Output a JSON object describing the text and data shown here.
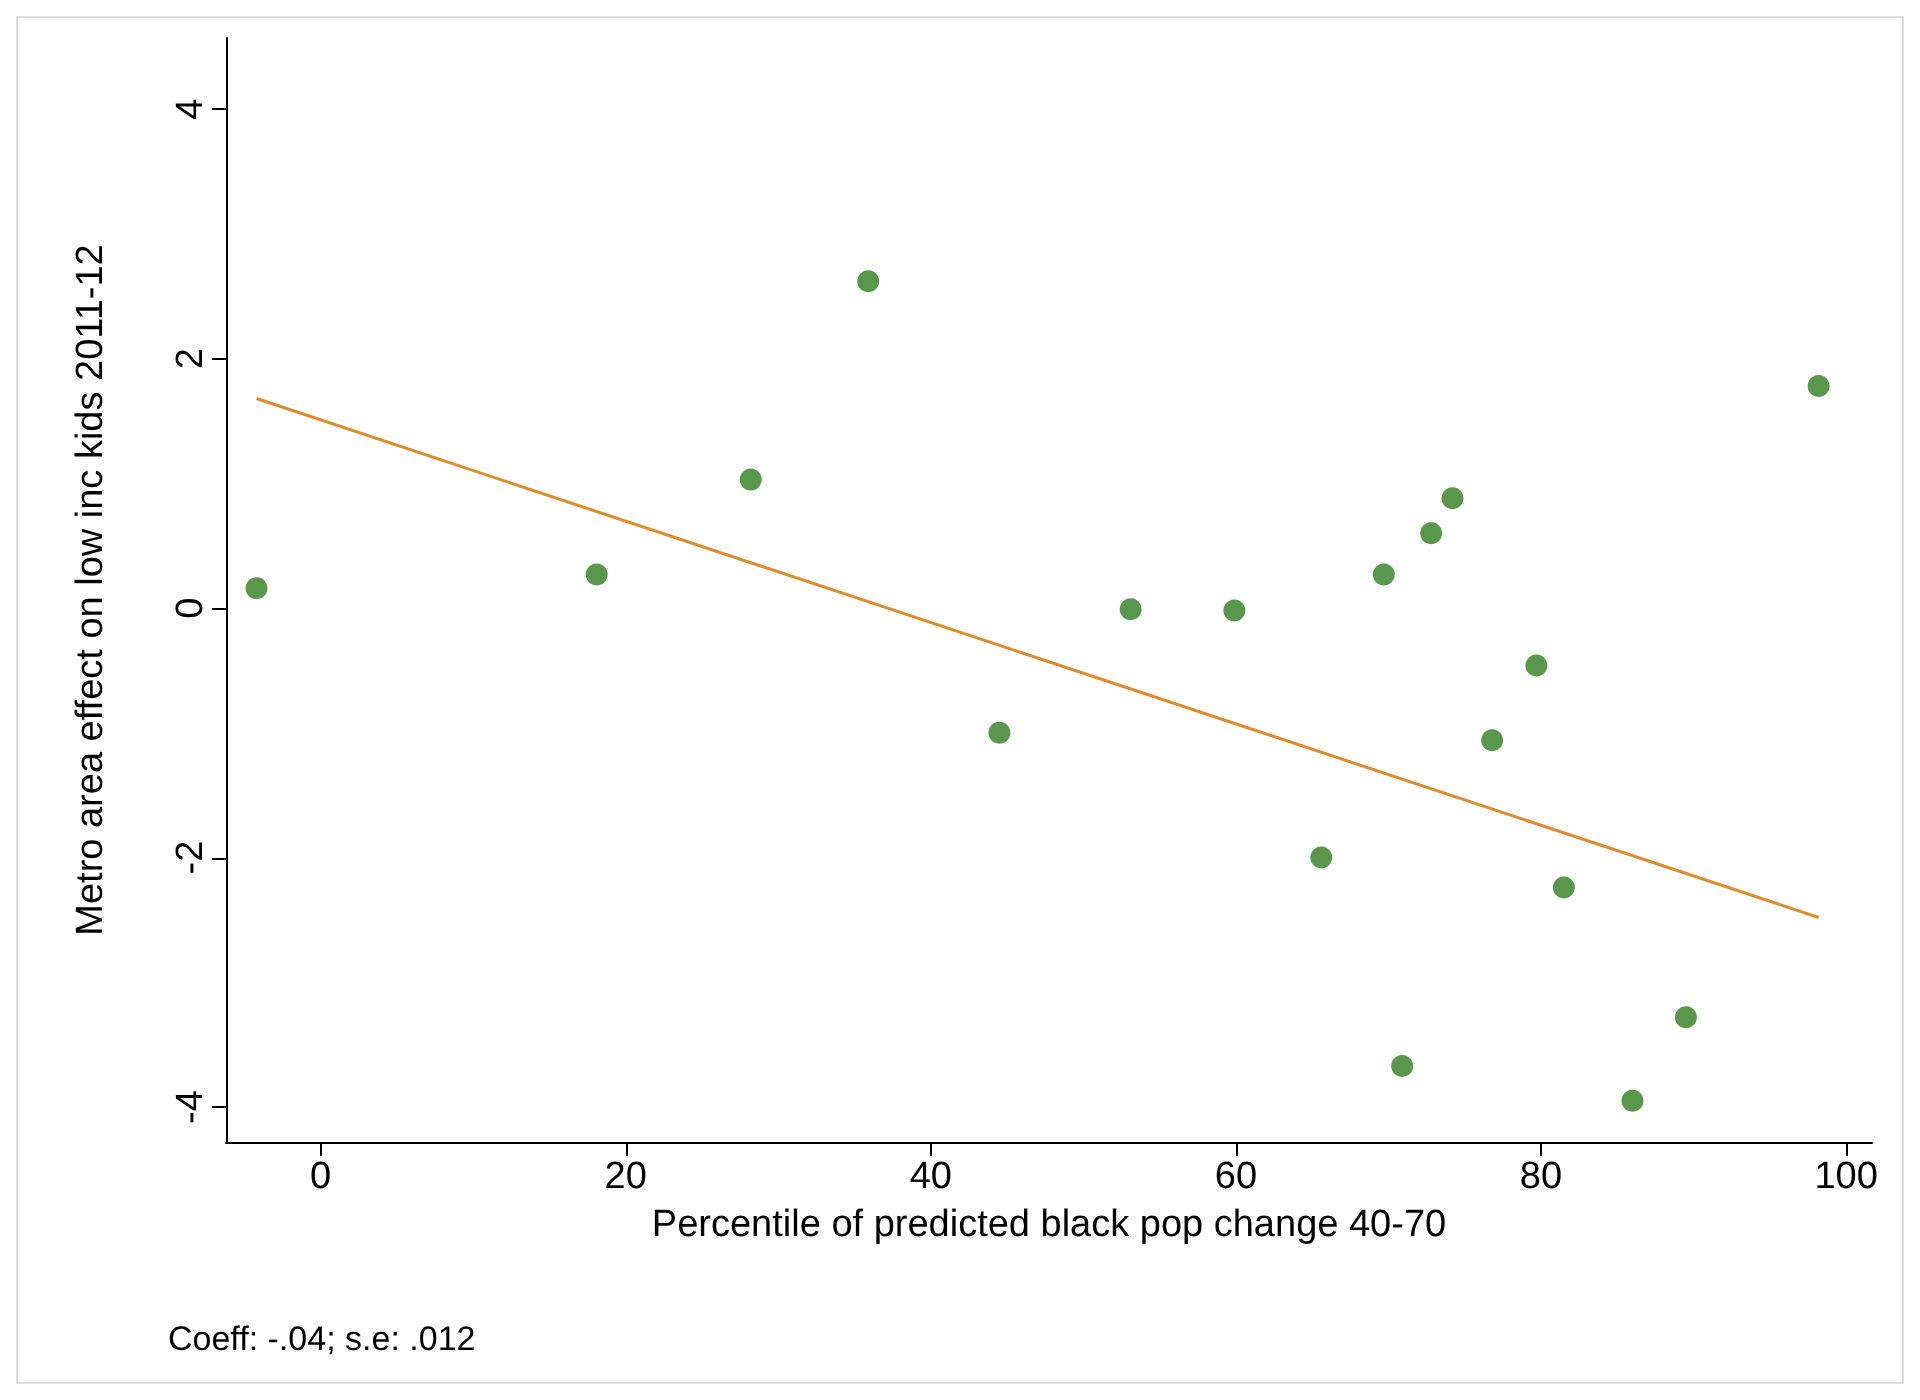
{
  "chart_data": {
    "type": "scatter",
    "xlabel": "Percentile of predicted black pop change 40-70",
    "ylabel": "Metro area effect on low inc kids 2011-12",
    "annotations": [
      "Coeff: -.04; s.e: .012"
    ],
    "xlim": [
      -6.2,
      101.7
    ],
    "ylim": [
      -4.28,
      4.57
    ],
    "xticks": [
      0,
      20,
      40,
      60,
      80,
      100
    ],
    "yticks": [
      -4,
      -2,
      0,
      2,
      4
    ],
    "grid": false,
    "marker": "circle",
    "series": [
      {
        "color": "#2e7d1f",
        "x": [
          -4.2,
          18.1,
          28.2,
          35.9,
          44.5,
          53.1,
          59.9,
          65.6,
          69.7,
          70.9,
          72.8,
          74.2,
          76.8,
          79.7,
          81.5,
          86.0,
          89.5,
          98.2
        ],
        "values": [
          0.16,
          0.27,
          1.03,
          2.62,
          -1.0,
          -0.01,
          -0.02,
          -2.0,
          0.27,
          -3.67,
          0.6,
          0.88,
          -1.06,
          -0.46,
          -2.24,
          -3.95,
          -3.28,
          1.78
        ]
      },
      {
        "type": "line",
        "color": "#e08a2e",
        "line_style": "solid",
        "marker": "none",
        "x": [
          -4.2,
          98.2
        ],
        "values": [
          1.68,
          -2.48
        ]
      }
    ]
  }
}
